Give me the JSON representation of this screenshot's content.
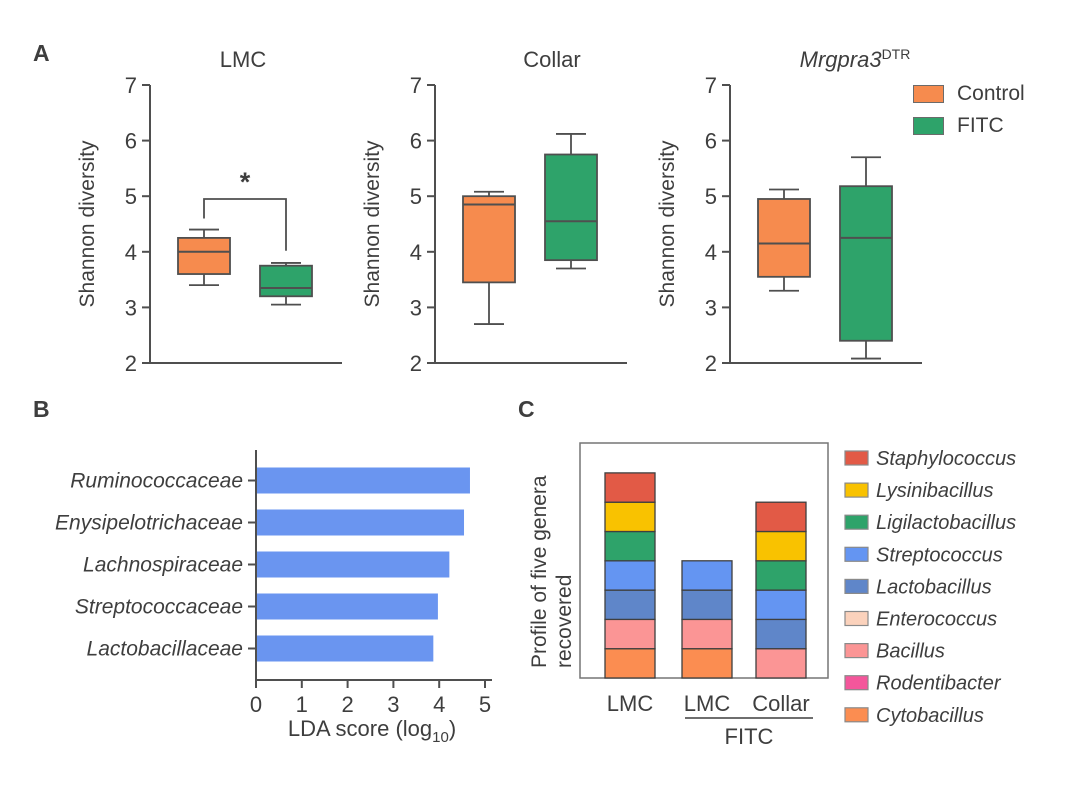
{
  "panels": {
    "a": "A",
    "b": "B",
    "c": "C"
  },
  "colors": {
    "control": "#F68B4E",
    "fitc": "#2EA36A",
    "axis": "#4f4f4f",
    "text": "#3e3e3e",
    "bar_blue": "#6A95F0",
    "frame_gray": "#757575"
  },
  "legendA": [
    {
      "label": "Control",
      "color": "#F68B4E"
    },
    {
      "label": "FITC",
      "color": "#2EA36A"
    }
  ],
  "chart_data": [
    {
      "id": "box0",
      "type": "box",
      "title": "LMC",
      "title_italic": false,
      "ylabel": "Shannon diversity",
      "ylim": [
        2,
        7
      ],
      "yticks": [
        2,
        3,
        4,
        5,
        6,
        7
      ],
      "series": [
        {
          "name": "Control",
          "color_key": "control",
          "min": 3.4,
          "q1": 3.6,
          "median": 4.0,
          "q3": 4.25,
          "max": 4.4
        },
        {
          "name": "FITC",
          "color_key": "fitc",
          "min": 3.05,
          "q1": 3.2,
          "median": 3.35,
          "q3": 3.75,
          "max": 3.8
        }
      ],
      "significance": "*"
    },
    {
      "id": "box1",
      "type": "box",
      "title": "Collar",
      "title_italic": false,
      "ylabel": "Shannon diversity",
      "ylim": [
        2,
        7
      ],
      "yticks": [
        2,
        3,
        4,
        5,
        6,
        7
      ],
      "series": [
        {
          "name": "Control",
          "color_key": "control",
          "min": 2.7,
          "q1": 3.45,
          "median": 4.85,
          "q3": 5.0,
          "max": 5.08
        },
        {
          "name": "FITC",
          "color_key": "fitc",
          "min": 3.7,
          "q1": 3.85,
          "median": 4.55,
          "q3": 5.75,
          "max": 6.12
        }
      ],
      "significance": null
    },
    {
      "id": "box2",
      "type": "box",
      "title": "Mrgpra3",
      "title_sup": "DTR",
      "title_italic": true,
      "ylabel": "Shannon diversity",
      "ylim": [
        2,
        7
      ],
      "yticks": [
        2,
        3,
        4,
        5,
        6,
        7
      ],
      "series": [
        {
          "name": "Control",
          "color_key": "control",
          "min": 3.3,
          "q1": 3.55,
          "median": 4.15,
          "q3": 4.95,
          "max": 5.12
        },
        {
          "name": "FITC",
          "color_key": "fitc",
          "min": 2.08,
          "q1": 2.4,
          "median": 4.25,
          "q3": 5.18,
          "max": 5.7
        }
      ],
      "significance": null
    },
    {
      "id": "lda",
      "type": "bar",
      "orientation": "horizontal",
      "categories": [
        "Ruminococcaceae",
        "Enysipelotrichaceae",
        "Lachnospiraceae",
        "Streptococcaceae",
        "Lactobacillaceae"
      ],
      "values": [
        4.65,
        4.52,
        4.2,
        3.95,
        3.85
      ],
      "xlim": [
        0,
        5
      ],
      "xticks": [
        0,
        1,
        2,
        3,
        4,
        5
      ],
      "xlabel": "LDA score (log",
      "xlabel_sub": "10",
      "xlabel_close": ")",
      "bar_color": "#6A95F0",
      "grid": false
    },
    {
      "id": "genera",
      "type": "stacked_bar",
      "ylabel_lines": [
        "Profile of five genera",
        "recovered"
      ],
      "group_label": "FITC",
      "segment_unit": 1,
      "bars": [
        {
          "label": "LMC",
          "group": null,
          "segments": [
            "Cytobacillus",
            "Bacillus",
            "Lactobacillus",
            "Streptococcus",
            "Ligilactobacillus",
            "Lysinibacillus",
            "Staphylococcus"
          ]
        },
        {
          "label": "LMC",
          "group": "FITC",
          "segments": [
            "Cytobacillus",
            "Bacillus",
            "Lactobacillus",
            "Streptococcus"
          ]
        },
        {
          "label": "Collar",
          "group": "FITC",
          "segments": [
            "Bacillus",
            "Lactobacillus",
            "Streptococcus",
            "Ligilactobacillus",
            "Lysinibacillus",
            "Staphylococcus"
          ]
        }
      ],
      "legend": [
        {
          "name": "Staphylococcus",
          "color": "#E25A46"
        },
        {
          "name": "Lysinibacillus",
          "color": "#F9C200"
        },
        {
          "name": "Ligilactobacillus",
          "color": "#2EA36A"
        },
        {
          "name": "Streptococcus",
          "color": "#6495F2"
        },
        {
          "name": "Lactobacillus",
          "color": "#5F86C9"
        },
        {
          "name": "Enterococcus",
          "color": "#FBD2BC"
        },
        {
          "name": "Bacillus",
          "color": "#FB9595"
        },
        {
          "name": "Rodentibacter",
          "color": "#F4569B"
        },
        {
          "name": "Cytobacillus",
          "color": "#FB8D51"
        }
      ],
      "legend_position": "right"
    }
  ]
}
